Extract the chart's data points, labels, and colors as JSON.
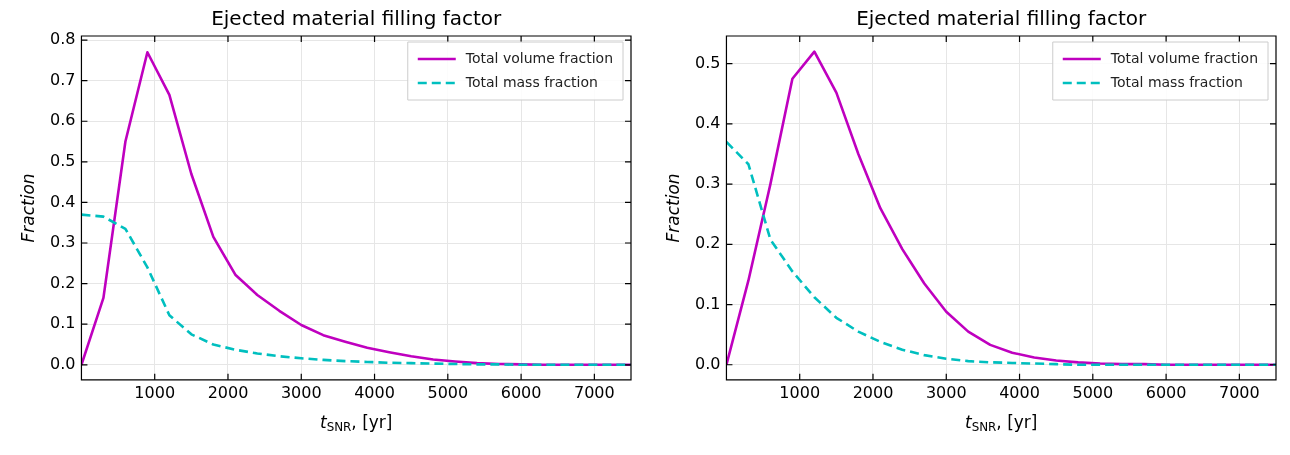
{
  "chart_data": [
    {
      "type": "line",
      "title": "Ejected material filling factor",
      "xlabel": "t$_{SNR}$, [yr]",
      "ylabel": "Fraction",
      "xlim": [
        0,
        7500
      ],
      "xticks": [
        1000,
        2000,
        3000,
        4000,
        5000,
        6000,
        7000
      ],
      "ylim": [
        -0.037,
        0.81
      ],
      "yticks": [
        {
          "value": 0,
          "label": "0.0"
        },
        0.1,
        0.2,
        0.3,
        0.4,
        0.5,
        0.6,
        0.7,
        0.8
      ],
      "grid": true,
      "legend": "top right",
      "marker": "none",
      "x": [
        0,
        300,
        600,
        900,
        1200,
        1500,
        1800,
        2100,
        2400,
        2700,
        3000,
        3300,
        3600,
        3900,
        4200,
        4500,
        4800,
        5100,
        5400,
        5700,
        6000,
        6300,
        6600,
        6900,
        7200,
        7500
      ],
      "series": [
        {
          "name": "Total volume fraction",
          "color": "#bf00bf",
          "line_style": "solid",
          "values": [
            0,
            0.165,
            0.55,
            0.77,
            0.665,
            0.47,
            0.315,
            0.222,
            0.172,
            0.133,
            0.098,
            0.073,
            0.057,
            0.042,
            0.031,
            0.021,
            0.013,
            0.008,
            0.004,
            0.002,
            0.001,
            0,
            0,
            0,
            0,
            0
          ]
        },
        {
          "name": "Total mass fraction",
          "color": "#00bfbf",
          "line_style": "dashed",
          "values": [
            0.37,
            0.365,
            0.335,
            0.24,
            0.122,
            0.075,
            0.05,
            0.037,
            0.028,
            0.021,
            0.016,
            0.012,
            0.009,
            0.007,
            0.005,
            0.004,
            0.003,
            0.002,
            0.001,
            0.001,
            0,
            0,
            0,
            0,
            0,
            0
          ]
        }
      ]
    },
    {
      "type": "line",
      "title": "Ejected material filling factor",
      "xlabel": "t$_{SNR}$, [yr]",
      "ylabel": "Fraction",
      "xlim": [
        0,
        7500
      ],
      "xticks": [
        1000,
        2000,
        3000,
        4000,
        5000,
        6000,
        7000
      ],
      "ylim": [
        -0.025,
        0.546
      ],
      "yticks": [
        {
          "value": 0,
          "label": "0.0"
        },
        0.1,
        0.2,
        0.3,
        0.4,
        0.5
      ],
      "grid": true,
      "legend": "top right",
      "marker": "none",
      "x": [
        0,
        300,
        600,
        900,
        1200,
        1500,
        1800,
        2100,
        2400,
        2700,
        3000,
        3300,
        3600,
        3900,
        4200,
        4500,
        4800,
        5100,
        5400,
        5700,
        6000,
        6300,
        6600,
        6900,
        7200,
        7500
      ],
      "series": [
        {
          "name": "Total volume fraction",
          "color": "#bf00bf",
          "line_style": "solid",
          "values": [
            0,
            0.14,
            0.3,
            0.475,
            0.52,
            0.452,
            0.35,
            0.26,
            0.192,
            0.135,
            0.088,
            0.055,
            0.033,
            0.02,
            0.012,
            0.007,
            0.004,
            0.002,
            0.001,
            0.001,
            0,
            0,
            0,
            0,
            0,
            0
          ]
        },
        {
          "name": "Total mass fraction",
          "color": "#00bfbf",
          "line_style": "dashed",
          "values": [
            0.37,
            0.333,
            0.208,
            0.155,
            0.112,
            0.078,
            0.055,
            0.038,
            0.025,
            0.016,
            0.01,
            0.006,
            0.004,
            0.003,
            0.002,
            0.001,
            0,
            0,
            0,
            0,
            0,
            0,
            0,
            0,
            0,
            0
          ]
        }
      ]
    }
  ]
}
